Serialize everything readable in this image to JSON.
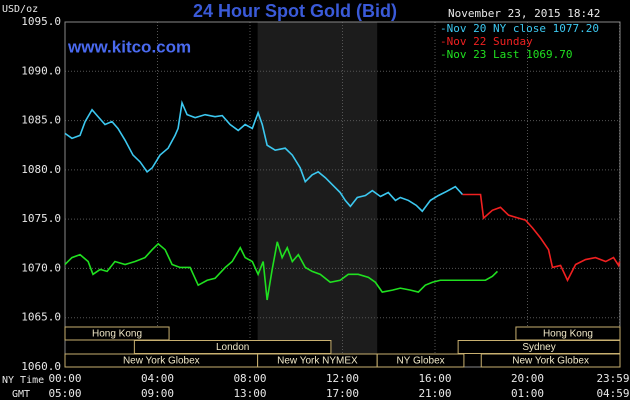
{
  "chart_data": {
    "type": "line",
    "title": "24 Hour Spot Gold (Bid)",
    "site": "www.kitco.com",
    "timestamp": "November 23, 2015 18:42",
    "y_label": "USD/oz",
    "x_label": "NY Time",
    "x2_label": "GMT",
    "xlim": [
      0,
      24
    ],
    "ylim": [
      1060,
      1095
    ],
    "yticks": [
      {
        "value": 1060,
        "label": "1060.0"
      },
      {
        "value": 1065,
        "label": "1065.0"
      },
      {
        "value": 1070,
        "label": "1070.0"
      },
      {
        "value": 1075,
        "label": "1075.0"
      },
      {
        "value": 1080,
        "label": "1080.0"
      },
      {
        "value": 1085,
        "label": "1085.0"
      },
      {
        "value": 1090,
        "label": "1090.0"
      },
      {
        "value": 1095,
        "label": "1095.0"
      }
    ],
    "xticks": [
      {
        "value": 0,
        "label": "00:00"
      },
      {
        "value": 4,
        "label": "04:00"
      },
      {
        "value": 8,
        "label": "08:00"
      },
      {
        "value": 12,
        "label": "12:00"
      },
      {
        "value": 16,
        "label": "16:00"
      },
      {
        "value": 20,
        "label": "20:00"
      },
      {
        "value": 23.98,
        "label": "23:59"
      }
    ],
    "x2tick_labels": [
      "05:00",
      "09:00",
      "13:00",
      "17:00",
      "21:00",
      "01:00",
      "04:59"
    ],
    "grid": true,
    "series": [
      {
        "name": "-Nov 20 NY close 1077.20",
        "color": "#3cc8f0",
        "x": [
          0,
          0.3,
          0.65,
          0.87,
          1.17,
          1.39,
          1.73,
          2.03,
          2.29,
          2.6,
          2.94,
          3.25,
          3.55,
          3.77,
          4.11,
          4.46,
          4.76,
          4.89,
          5.06,
          5.28,
          5.63,
          6.06,
          6.49,
          6.8,
          7.14,
          7.49,
          7.79,
          8.1,
          8.35,
          8.53,
          8.74,
          9.09,
          9.52,
          9.83,
          10.17,
          10.39,
          10.69,
          10.95,
          11.26,
          11.56,
          11.9,
          12.12,
          12.34,
          12.64,
          12.99,
          13.29,
          13.64,
          13.98,
          14.29,
          14.5,
          14.85,
          15.19,
          15.45,
          15.8,
          16.15,
          16.49,
          16.88,
          17.19
        ],
        "values": [
          1083.7,
          1083.2,
          1083.5,
          1084.9,
          1086.1,
          1085.5,
          1084.6,
          1084.9,
          1084.2,
          1083.0,
          1081.5,
          1080.8,
          1079.8,
          1080.2,
          1081.5,
          1082.2,
          1083.5,
          1084.2,
          1086.8,
          1085.6,
          1085.3,
          1085.6,
          1085.4,
          1085.5,
          1084.6,
          1084.0,
          1084.6,
          1084.2,
          1085.8,
          1084.6,
          1082.5,
          1082.0,
          1082.2,
          1081.5,
          1080.2,
          1078.8,
          1079.5,
          1079.8,
          1079.2,
          1078.5,
          1077.7,
          1076.9,
          1076.3,
          1077.2,
          1077.4,
          1077.9,
          1077.3,
          1077.7,
          1076.9,
          1077.2,
          1076.9,
          1076.4,
          1075.8,
          1076.9,
          1077.4,
          1077.8,
          1078.3,
          1077.5
        ]
      },
      {
        "name": "-Nov 22 Sunday",
        "color": "#f02020",
        "x": [
          17.19,
          17.97,
          18.1,
          18.48,
          18.83,
          19.18,
          19.61,
          19.91,
          20.22,
          20.56,
          20.91,
          21.08,
          21.43,
          21.73,
          22.08,
          22.51,
          22.94,
          23.38,
          23.72,
          23.94,
          23.98
        ],
        "values": [
          1077.5,
          1077.5,
          1075.1,
          1075.9,
          1076.2,
          1075.4,
          1075.1,
          1074.9,
          1074.1,
          1073.1,
          1071.9,
          1070.1,
          1070.3,
          1068.8,
          1070.4,
          1070.9,
          1071.1,
          1070.7,
          1071.1,
          1070.3,
          1070.7
        ]
      },
      {
        "name": "-Nov 23 Last 1069.70",
        "color": "#20e020",
        "x": [
          0,
          0.3,
          0.65,
          1.0,
          1.21,
          1.52,
          1.82,
          2.16,
          2.6,
          3.03,
          3.46,
          3.77,
          4.03,
          4.33,
          4.63,
          4.98,
          5.41,
          5.76,
          6.15,
          6.49,
          6.93,
          7.23,
          7.58,
          7.79,
          8.1,
          8.35,
          8.57,
          8.74,
          8.96,
          9.18,
          9.39,
          9.61,
          9.83,
          10.09,
          10.39,
          10.69,
          11.04,
          11.47,
          11.9,
          12.25,
          12.68,
          13.12,
          13.42,
          13.72,
          14.16,
          14.5,
          14.94,
          15.28,
          15.58,
          15.89,
          16.23,
          16.88,
          17.53,
          18.18,
          18.48,
          18.7
        ],
        "values": [
          1070.4,
          1071.1,
          1071.4,
          1070.7,
          1069.4,
          1069.9,
          1069.7,
          1070.7,
          1070.4,
          1070.7,
          1071.1,
          1071.9,
          1072.5,
          1071.9,
          1070.4,
          1070.1,
          1070.1,
          1068.3,
          1068.8,
          1069.0,
          1070.1,
          1070.7,
          1072.1,
          1071.1,
          1070.7,
          1069.4,
          1070.7,
          1066.8,
          1069.9,
          1072.7,
          1071.1,
          1072.1,
          1070.7,
          1071.4,
          1070.1,
          1069.7,
          1069.4,
          1068.6,
          1068.8,
          1069.4,
          1069.4,
          1069.1,
          1068.6,
          1067.6,
          1067.8,
          1068.0,
          1067.8,
          1067.6,
          1068.3,
          1068.6,
          1068.8,
          1068.8,
          1068.8,
          1068.8,
          1069.2,
          1069.7
        ]
      }
    ],
    "sessions": [
      [
        {
          "label": "Hong Kong",
          "start": 0,
          "end": 4.5
        },
        {
          "label": "Hong Kong",
          "start": 19.5,
          "end": 24
        }
      ],
      [
        {
          "label": "London",
          "start": 3,
          "end": 11.5
        },
        {
          "label": "Sydney",
          "start": 17,
          "end": 24
        }
      ],
      [
        {
          "label": "New York Globex",
          "start": 0,
          "end": 8.33
        },
        {
          "label": "New York NYMEX",
          "start": 8.33,
          "end": 13.5
        },
        {
          "label": "NY Globex",
          "start": 13.5,
          "end": 17.25
        },
        {
          "label": "New York Globex",
          "start": 18,
          "end": 24
        }
      ]
    ]
  }
}
